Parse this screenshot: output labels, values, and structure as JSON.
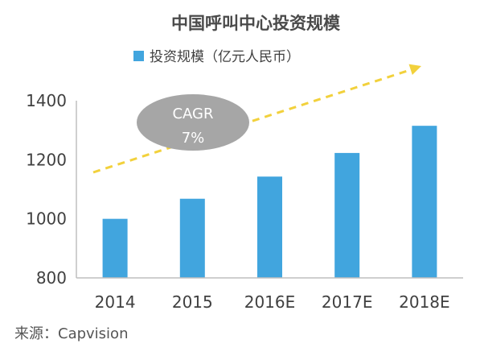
{
  "chart_data": {
    "type": "bar",
    "title": "中国呼叫中心投资规模",
    "legend": {
      "placement": "top-center",
      "series_name": "投资规模（亿元人民币）"
    },
    "categories": [
      "2014",
      "2015",
      "2016E",
      "2017E",
      "2018E"
    ],
    "series": [
      {
        "name": "投资规模（亿元人民币）",
        "values": [
          1000,
          1068,
          1143,
          1223,
          1315
        ]
      }
    ],
    "ylim": [
      800,
      1400
    ],
    "yticks": [
      "800",
      "1000",
      "1200",
      "1400"
    ],
    "grid": false,
    "annotation": {
      "label": "CAGR",
      "value": "7%"
    }
  },
  "source": "来源：Capvision",
  "colors": {
    "bar": "#41a5de",
    "trend_arrow": "#f2d13c",
    "bubble": "#a6a6a6",
    "axis": "#bfbfbf"
  }
}
